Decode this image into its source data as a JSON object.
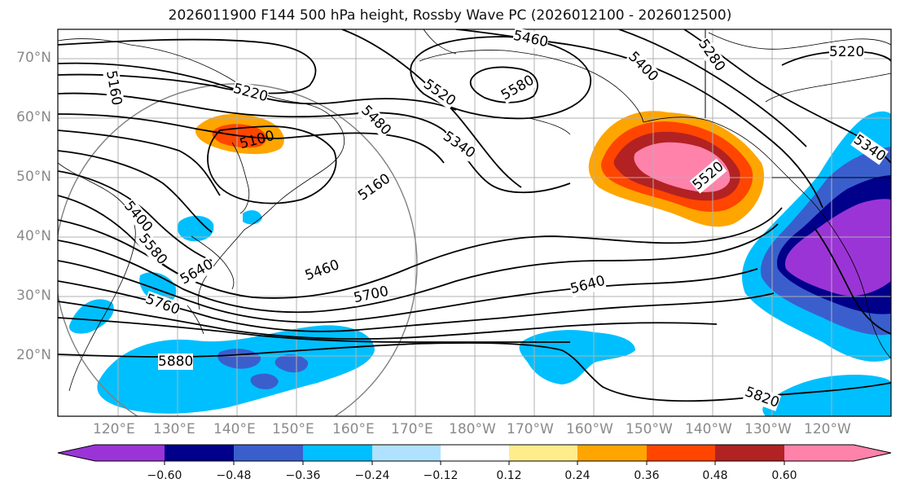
{
  "title": "2026011900 F144 500 hPa height, Rossby Wave PC (2026012100 - 2026012500)",
  "lat_labels": [
    "70°N",
    "60°N",
    "50°N",
    "40°N",
    "30°N",
    "20°N"
  ],
  "lon_labels": [
    "120°E",
    "130°E",
    "140°E",
    "150°E",
    "160°E",
    "170°E",
    "180°W",
    "170°W",
    "160°W",
    "150°W",
    "140°W",
    "130°W",
    "120°W"
  ],
  "colorbar": {
    "ticks": [
      "−0.60",
      "−0.48",
      "−0.36",
      "−0.24",
      "−0.12",
      "0.12",
      "0.24",
      "0.36",
      "0.48",
      "0.60"
    ],
    "colors": [
      "#9b34d6",
      "#00008b",
      "#3a5fcd",
      "#00bfff",
      "#00bfff",
      "#b0e2ff",
      "#ffffff",
      "#ffec8b",
      "#ffa500",
      "#ff4500",
      "#b22222",
      "#ff82ab"
    ]
  },
  "contour_labels": [
    "5460",
    "5400",
    "5280",
    "5220",
    "5160",
    "5220",
    "5480",
    "5520",
    "5580",
    "5340",
    "5100",
    "5160",
    "5400",
    "5580",
    "5640",
    "5460",
    "5700",
    "5640",
    "5760",
    "5880",
    "5520",
    "5340",
    "5820"
  ]
}
